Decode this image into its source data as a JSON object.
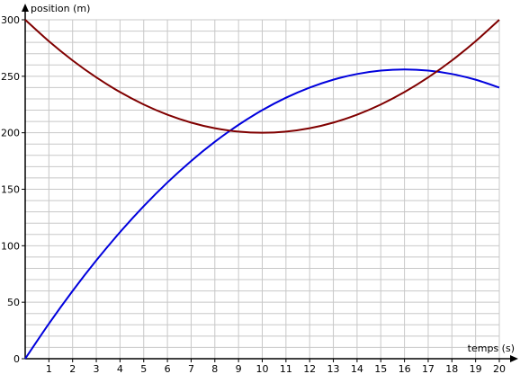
{
  "chart_data": {
    "type": "line",
    "title": "",
    "xlabel": "temps (s)",
    "ylabel": "position (m)",
    "xlim": [
      0,
      20
    ],
    "ylim": [
      0,
      300
    ],
    "x_ticks": [
      "1",
      "2",
      "3",
      "4",
      "5",
      "6",
      "7",
      "8",
      "9",
      "10",
      "11",
      "12",
      "13",
      "14",
      "15",
      "16",
      "17",
      "18",
      "19",
      "20"
    ],
    "y_ticks": [
      "0",
      "50",
      "100",
      "150",
      "200",
      "250",
      "300"
    ],
    "grid": true,
    "series": [
      {
        "color": "#0000dd",
        "x": [
          0,
          1,
          2,
          3,
          4,
          5,
          6,
          7,
          8,
          9,
          10,
          11,
          12,
          13,
          14,
          15,
          16,
          17,
          18,
          19,
          20
        ],
        "y": [
          0,
          31,
          60,
          87,
          112,
          135,
          156,
          175,
          192,
          207,
          220,
          231,
          240,
          247,
          252,
          255,
          256,
          255,
          252,
          247,
          240
        ]
      },
      {
        "color": "#800000",
        "x": [
          0,
          1,
          2,
          3,
          4,
          5,
          6,
          7,
          8,
          9,
          10,
          11,
          12,
          13,
          14,
          15,
          16,
          17,
          18,
          19,
          20
        ],
        "y": [
          300,
          281,
          264,
          249,
          236,
          225,
          216,
          209,
          204,
          201,
          200,
          201,
          204,
          209,
          216,
          225,
          236,
          249,
          264,
          281,
          300
        ]
      }
    ]
  }
}
